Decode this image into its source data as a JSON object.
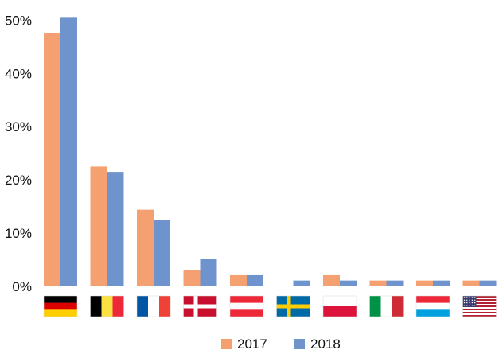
{
  "chart_data": {
    "type": "bar",
    "categories": [
      "Germany",
      "Belgium",
      "France",
      "Denmark",
      "Austria",
      "Sweden",
      "Poland",
      "Italy",
      "Luxembourg",
      "United States"
    ],
    "category_icons": [
      "flag-germany-icon",
      "flag-belgium-icon",
      "flag-france-icon",
      "flag-denmark-icon",
      "flag-austria-icon",
      "flag-sweden-icon",
      "flag-poland-icon",
      "flag-italy-icon",
      "flag-luxembourg-icon",
      "flag-usa-icon"
    ],
    "series": [
      {
        "name": "2017",
        "color": "#f4a070",
        "values": [
          47.6,
          22.5,
          14.4,
          3.1,
          2.1,
          0.1,
          2.1,
          1.1,
          1.1,
          1.1
        ]
      },
      {
        "name": "2018",
        "color": "#6f93cc",
        "values": [
          50.6,
          21.5,
          12.4,
          5.2,
          2.1,
          1.1,
          1.1,
          1.1,
          1.1,
          1.1
        ]
      }
    ],
    "y_ticks": [
      "0%",
      "10%",
      "20%",
      "30%",
      "40%",
      "50%"
    ],
    "ylim": [
      0,
      52
    ],
    "grid": false,
    "legend_position": "bottom-center",
    "title": "",
    "xlabel": "",
    "ylabel": ""
  }
}
